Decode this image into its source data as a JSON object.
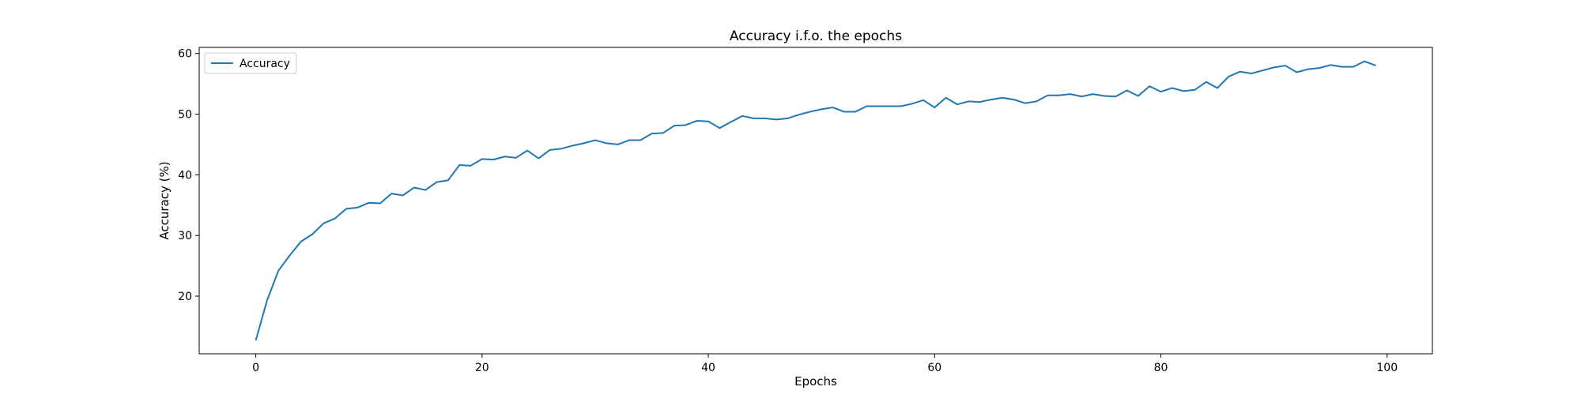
{
  "chart_data": {
    "type": "line",
    "title": "Accuracy i.f.o. the epochs",
    "xlabel": "Epochs",
    "ylabel": "Accuracy (%)",
    "xlim": [
      -5,
      104
    ],
    "ylim": [
      10.5,
      61
    ],
    "xticks": [
      0,
      20,
      40,
      60,
      80,
      100
    ],
    "yticks": [
      20,
      30,
      40,
      50,
      60
    ],
    "grid": false,
    "legend": {
      "placement": "top-left",
      "entries": [
        {
          "name": "Accuracy",
          "color": "#1f77b4"
        }
      ]
    },
    "series": [
      {
        "name": "Accuracy",
        "color": "#1f77b4",
        "x": [
          0,
          1,
          2,
          3,
          4,
          5,
          6,
          7,
          8,
          9,
          10,
          11,
          12,
          13,
          14,
          15,
          16,
          17,
          18,
          19,
          20,
          21,
          22,
          23,
          24,
          25,
          26,
          27,
          28,
          29,
          30,
          31,
          32,
          33,
          34,
          35,
          36,
          37,
          38,
          39,
          40,
          41,
          42,
          43,
          44,
          45,
          46,
          47,
          48,
          49,
          50,
          51,
          52,
          53,
          54,
          55,
          56,
          57,
          58,
          59,
          60,
          61,
          62,
          63,
          64,
          65,
          66,
          67,
          68,
          69,
          70,
          71,
          72,
          73,
          74,
          75,
          76,
          77,
          78,
          79,
          80,
          81,
          82,
          83,
          84,
          85,
          86,
          87,
          88,
          89,
          90,
          91,
          92,
          93,
          94,
          95,
          96,
          97,
          98,
          99
        ],
        "values": [
          12.7,
          19.3,
          24.2,
          26.7,
          29.0,
          30.2,
          32.0,
          32.8,
          34.4,
          34.6,
          35.4,
          35.3,
          36.9,
          36.6,
          37.9,
          37.5,
          38.8,
          39.1,
          41.6,
          41.5,
          42.6,
          42.5,
          43.0,
          42.8,
          44.0,
          42.7,
          44.1,
          44.3,
          44.8,
          45.2,
          45.7,
          45.2,
          45.0,
          45.7,
          45.7,
          46.8,
          46.9,
          48.1,
          48.2,
          48.9,
          48.8,
          47.7,
          48.7,
          49.7,
          49.3,
          49.3,
          49.1,
          49.3,
          49.9,
          50.4,
          50.8,
          51.1,
          50.4,
          50.4,
          51.3,
          51.3,
          51.3,
          51.3,
          51.7,
          52.3,
          51.1,
          52.7,
          51.6,
          52.1,
          52.0,
          52.4,
          52.7,
          52.4,
          51.8,
          52.1,
          53.1,
          53.1,
          53.3,
          52.9,
          53.3,
          53.0,
          52.9,
          53.9,
          53.0,
          54.6,
          53.7,
          54.3,
          53.8,
          54.0,
          55.3,
          54.3,
          56.2,
          57.0,
          56.7,
          57.2,
          57.7,
          58.0,
          56.9,
          57.4,
          57.6,
          58.1,
          57.8,
          57.8,
          58.7,
          58.0
        ]
      }
    ]
  }
}
